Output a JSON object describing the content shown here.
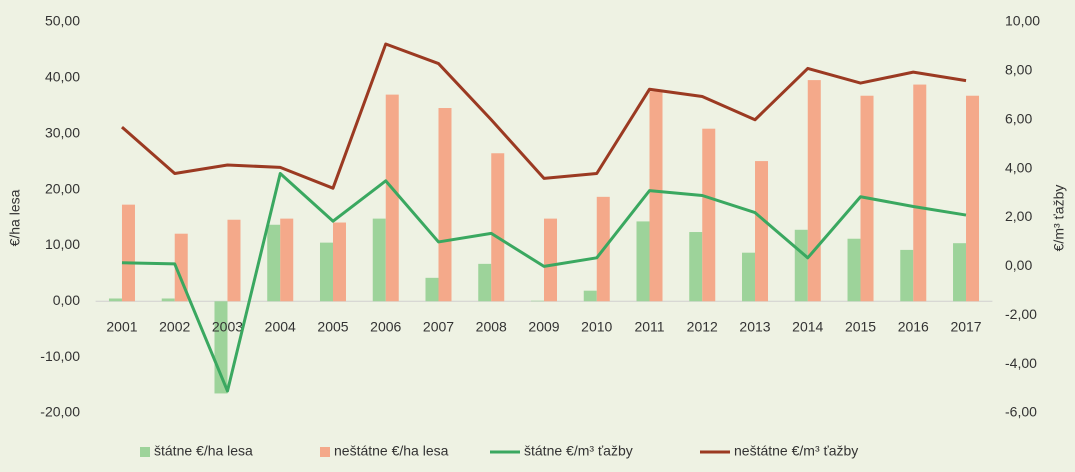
{
  "chart_data": {
    "type": "bar-line",
    "y_label": "€/ha lesa",
    "y2_label": "€/m³ ťažby",
    "categories": [
      "2001",
      "2002",
      "2003",
      "2004",
      "2005",
      "2006",
      "2007",
      "2008",
      "2009",
      "2010",
      "2011",
      "2012",
      "2013",
      "2014",
      "2015",
      "2016",
      "2017"
    ],
    "series": [
      {
        "name": "štátne €/ha lesa",
        "color": "#9dd39a",
        "kind": "bar",
        "values": [
          0.5,
          0.5,
          -16.5,
          13.7,
          10.5,
          14.8,
          4.2,
          6.7,
          0.1,
          1.9,
          14.3,
          12.4,
          8.7,
          12.8,
          11.2,
          9.2,
          10.4
        ]
      },
      {
        "name": "neštátne €/ha lesa",
        "color": "#f4a98a",
        "kind": "bar",
        "values": [
          17.3,
          12.1,
          14.6,
          14.8,
          14.1,
          37.0,
          34.6,
          26.5,
          14.8,
          18.7,
          37.6,
          30.9,
          25.1,
          39.6,
          36.8,
          38.8,
          36.8
        ]
      },
      {
        "name": "štátne €/m³ ťažby",
        "color": "#3aa860",
        "kind": "line",
        "axis": "y2",
        "values": [
          0.15,
          0.1,
          -5.1,
          3.8,
          1.85,
          3.5,
          1.0,
          1.35,
          0.0,
          0.35,
          3.1,
          2.9,
          2.2,
          0.35,
          2.85,
          2.45,
          2.1
        ]
      },
      {
        "name": "neštátne €/m³ ťažby",
        "color": "#9b3a22",
        "kind": "line",
        "axis": "y2",
        "values": [
          5.7,
          3.8,
          4.15,
          4.05,
          3.2,
          9.1,
          8.3,
          6.0,
          3.6,
          3.8,
          7.25,
          6.95,
          6.0,
          8.1,
          7.5,
          7.95,
          7.6
        ]
      }
    ],
    "ylim": [
      -20,
      50
    ],
    "yticks": [
      {
        "value": 50,
        "label": "50,00"
      },
      {
        "value": 40,
        "label": "40,00"
      },
      {
        "value": 30,
        "label": "30,00"
      },
      {
        "value": 20,
        "label": "20,00"
      },
      {
        "value": 10,
        "label": "10,00"
      },
      {
        "value": 0,
        "label": "0,00"
      },
      {
        "value": -10,
        "label": "-10,00"
      },
      {
        "value": -20,
        "label": "-20,00"
      }
    ],
    "y2lim": [
      -6,
      10
    ],
    "y2ticks": [
      {
        "value": 10,
        "label": "10,00"
      },
      {
        "value": 8,
        "label": "8,00"
      },
      {
        "value": 6,
        "label": "6,00"
      },
      {
        "value": 4,
        "label": "4,00"
      },
      {
        "value": 2,
        "label": "2,00"
      },
      {
        "value": 0,
        "label": "0,00"
      },
      {
        "value": -2,
        "label": "-2,00"
      },
      {
        "value": -4,
        "label": "-4,00"
      },
      {
        "value": -6,
        "label": "-6,00"
      }
    ],
    "legend": "bottom"
  }
}
